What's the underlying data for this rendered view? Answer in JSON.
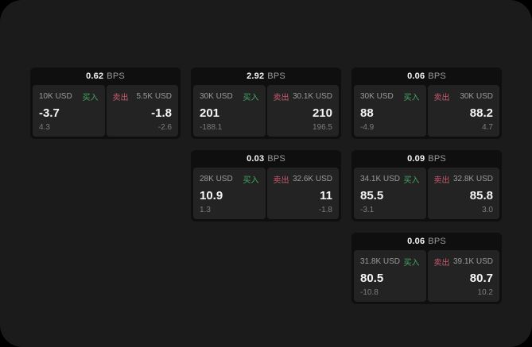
{
  "colors": {
    "page_bg": "#1b1b1b",
    "card_bg": "#0f0f0f",
    "panel_bg": "#232323",
    "text_primary": "#f5f5f5",
    "text_muted": "#9a9a9a",
    "text_dim": "#7d7d7d",
    "buy_green": "#46a566",
    "sell_red": "#c75a6e"
  },
  "labels": {
    "bps_unit": "BPS",
    "buy": "买入",
    "sell": "卖出"
  },
  "cards": [
    {
      "row": 1,
      "col": 1,
      "bps": "0.62",
      "buy": {
        "amount": "10K USD",
        "value": "-3.7",
        "delta": "4.3"
      },
      "sell": {
        "amount": "5.5K USD",
        "value": "-1.8",
        "delta": "-2.6"
      }
    },
    {
      "row": 1,
      "col": 2,
      "bps": "2.92",
      "buy": {
        "amount": "30K USD",
        "value": "201",
        "delta": "-188.1"
      },
      "sell": {
        "amount": "30.1K USD",
        "value": "210",
        "delta": "196.5"
      }
    },
    {
      "row": 1,
      "col": 3,
      "bps": "0.06",
      "buy": {
        "amount": "30K USD",
        "value": "88",
        "delta": "-4.9"
      },
      "sell": {
        "amount": "30K USD",
        "value": "88.2",
        "delta": "4.7"
      }
    },
    {
      "row": 2,
      "col": 2,
      "bps": "0.03",
      "buy": {
        "amount": "28K USD",
        "value": "10.9",
        "delta": "1.3"
      },
      "sell": {
        "amount": "32.6K USD",
        "value": "11",
        "delta": "-1.8"
      }
    },
    {
      "row": 2,
      "col": 3,
      "bps": "0.09",
      "buy": {
        "amount": "34.1K USD",
        "value": "85.5",
        "delta": "-3.1"
      },
      "sell": {
        "amount": "32.8K USD",
        "value": "85.8",
        "delta": "3.0"
      }
    },
    {
      "row": 3,
      "col": 3,
      "bps": "0.06",
      "buy": {
        "amount": "31.8K USD",
        "value": "80.5",
        "delta": "-10.8"
      },
      "sell": {
        "amount": "39.1K USD",
        "value": "80.7",
        "delta": "10.2"
      }
    }
  ]
}
